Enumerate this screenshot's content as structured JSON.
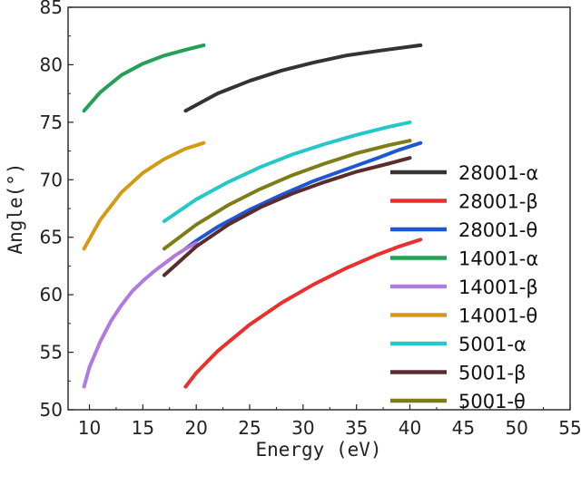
{
  "chart_data": {
    "type": "line",
    "xlabel": "Energy (eV)",
    "ylabel": "Angle(°)",
    "xlim": [
      8,
      55
    ],
    "ylim": [
      50,
      85
    ],
    "x_ticks": [
      10,
      15,
      20,
      25,
      30,
      35,
      40,
      45,
      50,
      55
    ],
    "y_ticks": [
      50,
      55,
      60,
      65,
      70,
      75,
      80,
      85
    ],
    "grid": false,
    "legend_position": "right",
    "series": [
      {
        "name": "28001-α",
        "color": "#333333",
        "x": [
          19,
          22,
          25,
          28,
          31,
          34,
          37,
          41
        ],
        "y": [
          76.0,
          77.5,
          78.6,
          79.5,
          80.2,
          80.8,
          81.2,
          81.7
        ]
      },
      {
        "name": "28001-β",
        "color": "#e8302e",
        "x": [
          19,
          20,
          22,
          25,
          28,
          31,
          34,
          37,
          39,
          41
        ],
        "y": [
          52.0,
          53.2,
          55.1,
          57.4,
          59.3,
          60.9,
          62.3,
          63.5,
          64.2,
          64.8
        ]
      },
      {
        "name": "28001-θ",
        "color": "#1e57d6",
        "x": [
          19,
          20,
          22,
          25,
          28,
          31,
          34,
          37,
          39,
          41
        ],
        "y": [
          64.0,
          64.7,
          65.9,
          67.4,
          68.7,
          69.9,
          70.9,
          71.9,
          72.6,
          73.2
        ]
      },
      {
        "name": "14001-α",
        "color": "#23a055",
        "x": [
          9.5,
          11,
          13,
          15,
          17,
          19,
          20.7
        ],
        "y": [
          76.0,
          77.6,
          79.1,
          80.1,
          80.8,
          81.3,
          81.7
        ]
      },
      {
        "name": "14001-β",
        "color": "#b07ae0",
        "x": [
          9.5,
          10,
          11,
          12,
          13,
          14,
          15,
          16,
          17,
          18,
          19,
          20
        ],
        "y": [
          52.0,
          53.7,
          55.9,
          57.7,
          59.1,
          60.3,
          61.2,
          62.0,
          62.7,
          63.4,
          64.0,
          64.5
        ]
      },
      {
        "name": "14001-θ",
        "color": "#d49a12",
        "x": [
          9.5,
          11,
          13,
          15,
          17,
          19,
          20.7
        ],
        "y": [
          64.0,
          66.5,
          68.9,
          70.6,
          71.8,
          72.7,
          73.2
        ]
      },
      {
        "name": "5001-α",
        "color": "#24c8c8",
        "x": [
          17,
          20,
          23,
          26,
          29,
          32,
          35,
          38,
          40
        ],
        "y": [
          66.4,
          68.3,
          69.8,
          71.1,
          72.2,
          73.1,
          73.9,
          74.6,
          75.0
        ]
      },
      {
        "name": "5001-β",
        "color": "#5c2c2c",
        "x": [
          17,
          20,
          23,
          26,
          29,
          32,
          35,
          38,
          40
        ],
        "y": [
          61.7,
          64.2,
          66.1,
          67.6,
          68.8,
          69.8,
          70.7,
          71.4,
          71.9
        ]
      },
      {
        "name": "5001-θ",
        "color": "#7d7d17",
        "x": [
          17,
          20,
          23,
          26,
          29,
          32,
          35,
          38,
          40
        ],
        "y": [
          64.0,
          66.1,
          67.8,
          69.2,
          70.4,
          71.4,
          72.3,
          73.0,
          73.4
        ]
      }
    ]
  }
}
